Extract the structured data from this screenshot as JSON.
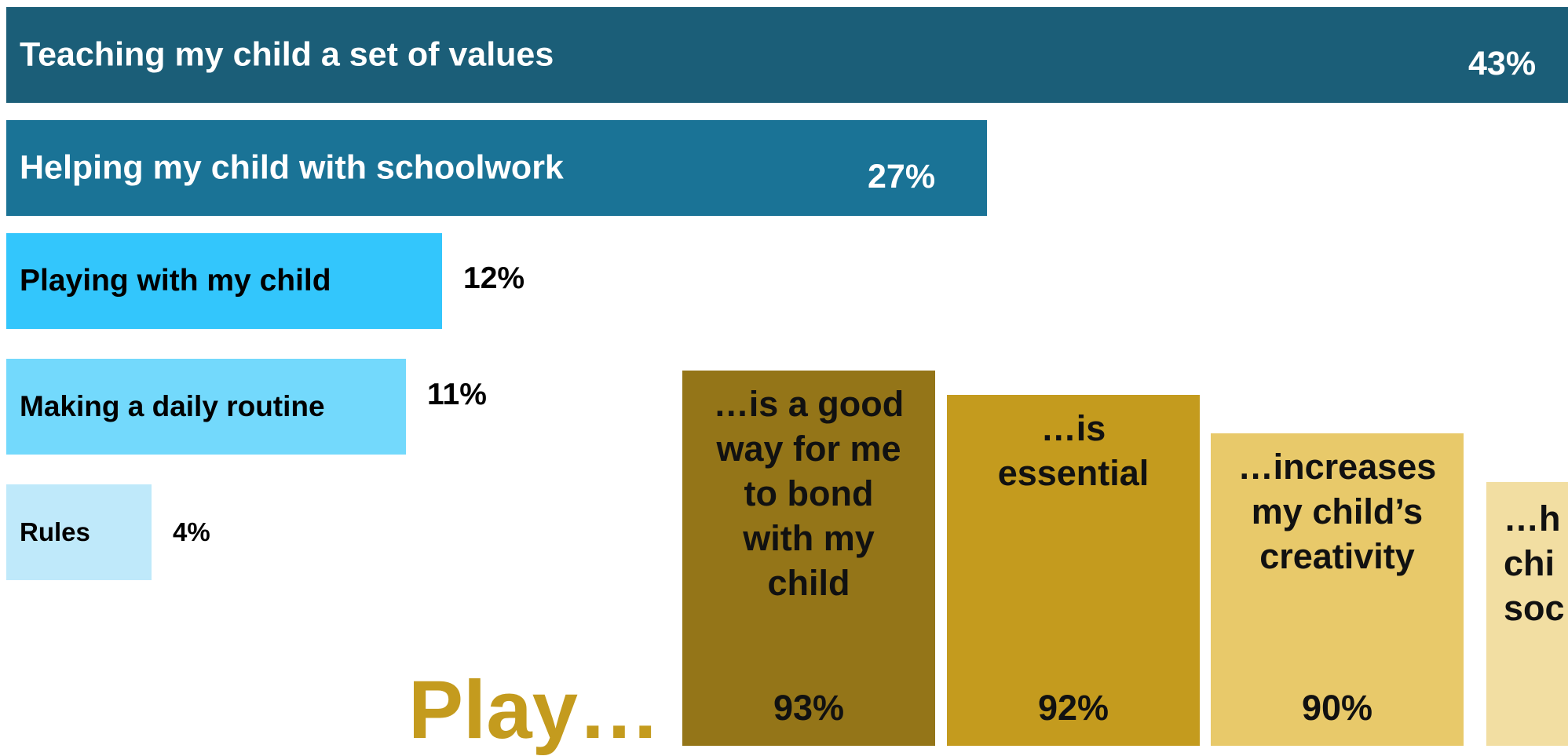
{
  "chart_data": [
    {
      "type": "bar",
      "orientation": "horizontal",
      "categories": [
        "Teaching my child a set of values",
        "Helping my child with schoolwork",
        "Playing with my child",
        "Making a daily routine",
        "Rules"
      ],
      "values": [
        43,
        27,
        12,
        11,
        4
      ],
      "value_labels": [
        "43%",
        "27%",
        "12%",
        "11%",
        "4%"
      ],
      "colors": [
        "#1b5e78",
        "#1a7396",
        "#33c6fc",
        "#73d9fc",
        "#bfe9fa"
      ],
      "label_colors": [
        "#ffffff",
        "#ffffff",
        "#000000",
        "#000000",
        "#000000"
      ],
      "xlim": [
        0,
        43
      ]
    },
    {
      "type": "bar",
      "orientation": "vertical",
      "title": "Play…",
      "title_color": "#c49b1e",
      "categories": [
        "…is a good way for me to bond with my child",
        "…is essential",
        "…increases my child’s creativity",
        "…h chi soc"
      ],
      "display_lines": [
        "…is a good\nway for me\nto bond\nwith my\nchild",
        "…is\nessential",
        "…increases\nmy child’s\ncreativity",
        "…h\nchi\nsoc"
      ],
      "values": [
        93,
        92,
        90,
        null
      ],
      "value_labels": [
        "93%",
        "92%",
        "90%",
        ""
      ],
      "colors": [
        "#947518",
        "#c49b1e",
        "#e8c96a",
        "#f2dea2"
      ]
    }
  ]
}
